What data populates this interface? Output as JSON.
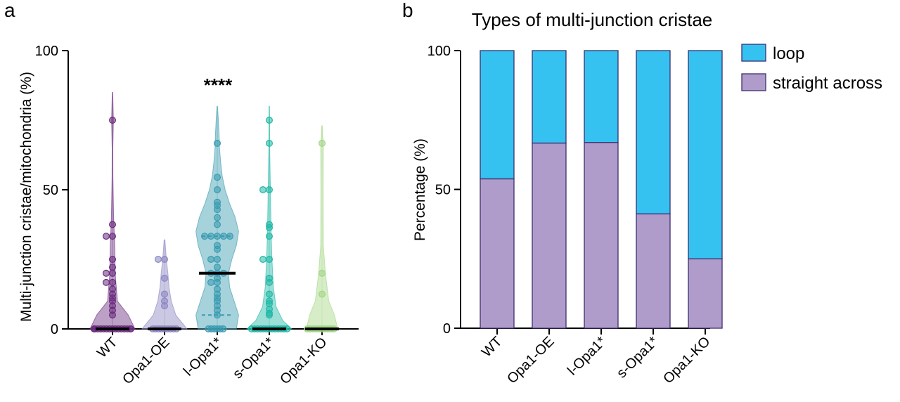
{
  "chart_data": [
    {
      "panel": "a",
      "type": "violin",
      "title": "",
      "ylabel": "Multi-junction cristae/mitochondria (%)",
      "ylim": [
        0,
        100
      ],
      "yticks": [
        0,
        50,
        100
      ],
      "significance": "****",
      "significance_group": "l-Opa1*",
      "categories": [
        "WT",
        "Opa1-OE",
        "l-Opa1*",
        "s-Opa1*",
        "Opa1-KO"
      ],
      "colors": [
        "#6a2c7e",
        "#8b86c2",
        "#3a9bb0",
        "#21b8a6",
        "#a3d684"
      ],
      "medians": [
        0,
        0,
        20,
        0,
        0
      ],
      "quartiles": [
        [
          0,
          0
        ],
        [
          0,
          0
        ],
        [
          5,
          33.3
        ],
        [
          0,
          0
        ],
        [
          0,
          0
        ]
      ],
      "points": [
        [
          75,
          37.5,
          33.3,
          33.3,
          25,
          22.2,
          20,
          20,
          16.7,
          16.7,
          14.3,
          12.5,
          11.1,
          10,
          8.3,
          6.7,
          5,
          0,
          0,
          0,
          0,
          0,
          0,
          0,
          0,
          0,
          0,
          0,
          0,
          0,
          0,
          0,
          0
        ],
        [
          25,
          25,
          18.2,
          12.5,
          10,
          8.3,
          0,
          0,
          0,
          0,
          0,
          0,
          0,
          0,
          0
        ],
        [
          66.7,
          54.5,
          50,
          45.5,
          44.4,
          42.9,
          40,
          37.5,
          33.3,
          33.3,
          33.3,
          33.3,
          33.3,
          30,
          28.6,
          25,
          25,
          22.2,
          20,
          20,
          20,
          18.2,
          16.7,
          16.7,
          14.3,
          12.5,
          11.1,
          10,
          8.3,
          6.7,
          5,
          0,
          0,
          0,
          0,
          0,
          0
        ],
        [
          75,
          66.7,
          50,
          50,
          37.5,
          36.4,
          33.3,
          25,
          25,
          18.2,
          16.7,
          12.5,
          10,
          9.1,
          7.1,
          5.6,
          5,
          0,
          0,
          0,
          0,
          0,
          0,
          0,
          0,
          0,
          0,
          0,
          0,
          0
        ],
        [
          66.7,
          20,
          12.5,
          0,
          0,
          0,
          0,
          0,
          0,
          0,
          0,
          0,
          0
        ]
      ],
      "density_profiles": [
        [
          [
            0,
            1.0
          ],
          [
            5,
            0.7
          ],
          [
            10,
            0.22
          ],
          [
            20,
            0.12
          ],
          [
            30,
            0.1
          ],
          [
            40,
            0.05
          ],
          [
            55,
            0.02
          ],
          [
            65,
            0.015
          ],
          [
            75,
            0.04
          ],
          [
            85,
            0.01
          ]
        ],
        [
          [
            0,
            1.0
          ],
          [
            5,
            0.5
          ],
          [
            10,
            0.3
          ],
          [
            15,
            0.2
          ],
          [
            20,
            0.15
          ],
          [
            25,
            0.08
          ],
          [
            32,
            0.02
          ]
        ],
        [
          [
            0,
            0.85
          ],
          [
            5,
            0.95
          ],
          [
            10,
            0.75
          ],
          [
            15,
            0.55
          ],
          [
            20,
            0.5
          ],
          [
            25,
            0.65
          ],
          [
            30,
            0.85
          ],
          [
            35,
            0.95
          ],
          [
            40,
            0.8
          ],
          [
            45,
            0.55
          ],
          [
            50,
            0.35
          ],
          [
            55,
            0.22
          ],
          [
            60,
            0.15
          ],
          [
            65,
            0.1
          ],
          [
            70,
            0.08
          ],
          [
            75,
            0.05
          ],
          [
            80,
            0.01
          ]
        ],
        [
          [
            0,
            1.0
          ],
          [
            3,
            0.6
          ],
          [
            8,
            0.3
          ],
          [
            15,
            0.18
          ],
          [
            25,
            0.12
          ],
          [
            35,
            0.08
          ],
          [
            50,
            0.05
          ],
          [
            65,
            0.02
          ],
          [
            80,
            0.01
          ]
        ],
        [
          [
            0,
            0.7
          ],
          [
            5,
            0.55
          ],
          [
            10,
            0.3
          ],
          [
            20,
            0.15
          ],
          [
            30,
            0.06
          ],
          [
            50,
            0.05
          ],
          [
            65,
            0.06
          ],
          [
            73,
            0.01
          ]
        ]
      ]
    },
    {
      "panel": "b",
      "type": "stacked_bar",
      "title": "Types of multi-junction cristae",
      "ylabel": "Percentage (%)",
      "ylim": [
        0,
        100
      ],
      "yticks": [
        0,
        50,
        100
      ],
      "categories": [
        "WT",
        "Opa1-OE",
        "l-Opa1*",
        "s-Opa1*",
        "Opa1-KO"
      ],
      "series": [
        {
          "name": "straight across",
          "color": "#b09ccb",
          "values": [
            53.8,
            66.7,
            66.9,
            41.2,
            25
          ]
        },
        {
          "name": "loop",
          "color": "#35c2f1",
          "values": [
            46.2,
            33.3,
            33.1,
            58.8,
            75
          ]
        }
      ],
      "legend_order": [
        "loop",
        "straight across"
      ],
      "legend": [
        {
          "name": "loop",
          "color": "#35c2f1"
        },
        {
          "name": "straight across",
          "color": "#b09ccb"
        }
      ]
    }
  ]
}
